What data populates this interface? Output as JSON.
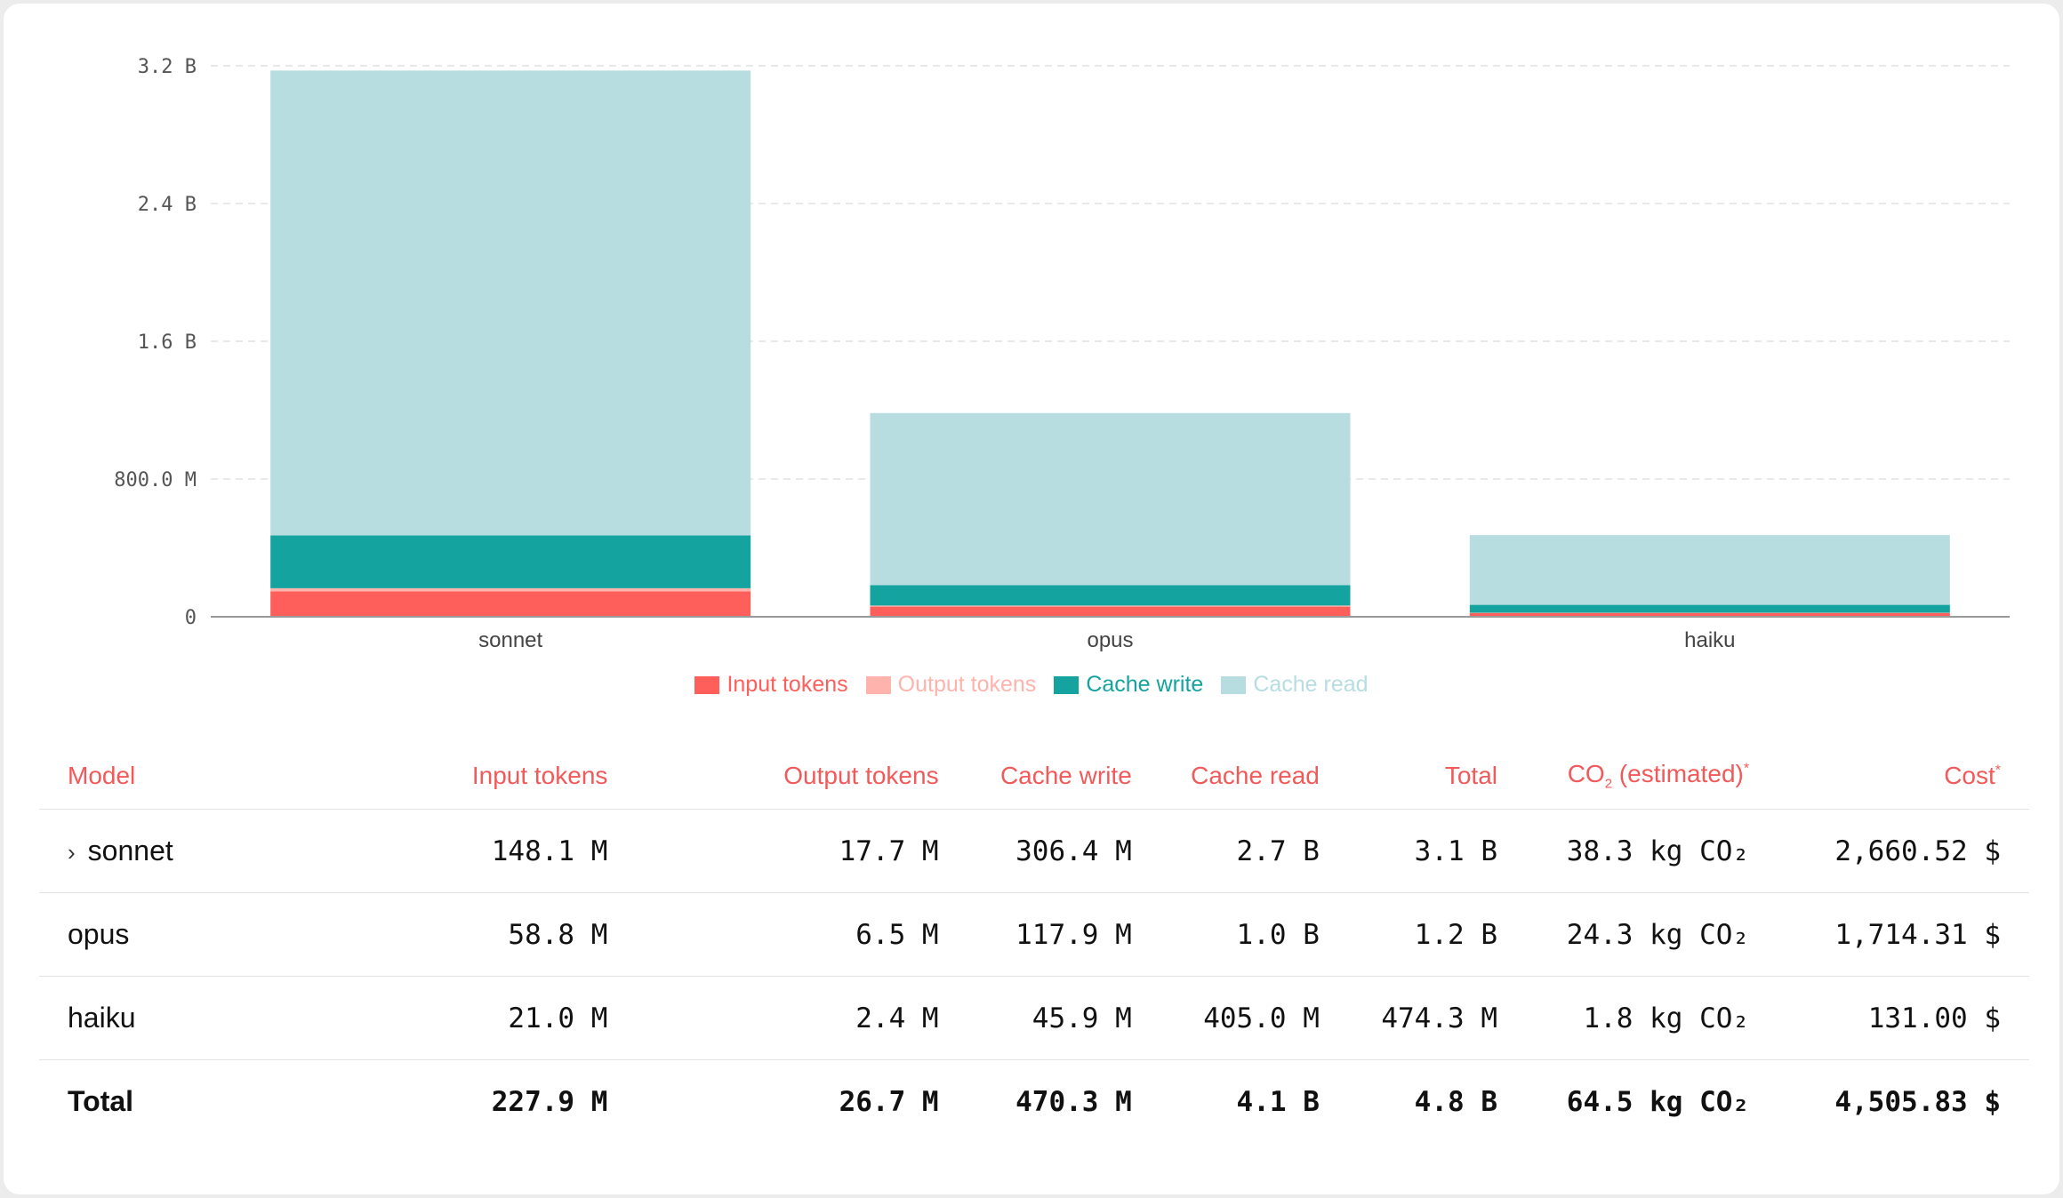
{
  "chart_data": {
    "type": "bar",
    "stacked": true,
    "categories": [
      "sonnet",
      "opus",
      "haiku"
    ],
    "series": [
      {
        "name": "Input tokens",
        "color": "#ff5f5a",
        "values": [
          148.1,
          58.8,
          21.0
        ]
      },
      {
        "name": "Output tokens",
        "color": "#ffb3ad",
        "values": [
          17.7,
          6.5,
          2.4
        ]
      },
      {
        "name": "Cache write",
        "color": "#14a39e",
        "values": [
          306.4,
          117.9,
          45.9
        ]
      },
      {
        "name": "Cache read",
        "color": "#b7dde1",
        "values": [
          2700,
          1000,
          405.0
        ]
      }
    ],
    "unit": "M",
    "ylim": [
      0,
      3200
    ],
    "yticks": [
      0,
      800,
      1600,
      2400,
      3200
    ],
    "ytick_labels": [
      "0",
      "800.0 M",
      "1.6 B",
      "2.4 B",
      "3.2 B"
    ],
    "grid": true,
    "legend_position": "bottom-center"
  },
  "table": {
    "headers": {
      "model": "Model",
      "input": "Input tokens",
      "output": "Output tokens",
      "cache_write": "Cache write",
      "cache_read": "Cache read",
      "total": "Total",
      "co2_prefix": "CO",
      "co2_sub": "2",
      "co2_suffix": " (estimated)",
      "cost": "Cost",
      "asterisk": "*"
    },
    "expand_icon": "chevron-right-icon",
    "rows": [
      {
        "model": "sonnet",
        "input": "148.1 M",
        "output": "17.7 M",
        "cache_write": "306.4 M",
        "cache_read": "2.7 B",
        "total": "3.1 B",
        "co2": "38.3 kg CO₂",
        "cost": "2,660.52 $"
      },
      {
        "model": "opus",
        "input": "58.8 M",
        "output": "6.5 M",
        "cache_write": "117.9 M",
        "cache_read": "1.0 B",
        "total": "1.2 B",
        "co2": "24.3 kg CO₂",
        "cost": "1,714.31 $"
      },
      {
        "model": "haiku",
        "input": "21.0 M",
        "output": "2.4 M",
        "cache_write": "45.9 M",
        "cache_read": "405.0 M",
        "total": "474.3 M",
        "co2": "1.8 kg CO₂",
        "cost": "131.00 $"
      }
    ],
    "total": {
      "model": "Total",
      "input": "227.9 M",
      "output": "26.7 M",
      "cache_write": "470.3 M",
      "cache_read": "4.1 B",
      "total": "4.8 B",
      "co2": "64.5 kg CO₂",
      "cost": "4,505.83 $"
    }
  }
}
